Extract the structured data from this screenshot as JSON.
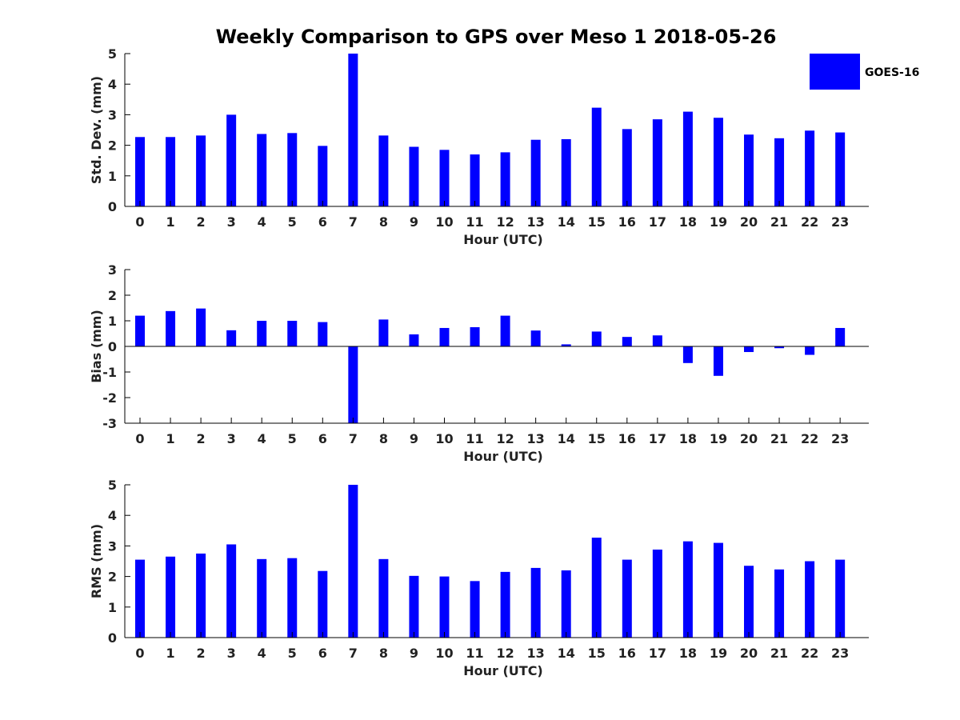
{
  "colors": {
    "bar": "#0000ff",
    "axis": "#000000",
    "text": "#222222"
  },
  "legend": {
    "label": "GOES-16",
    "placement": "top-right"
  },
  "chart_data": {
    "title": "Weekly Comparison to GPS over Meso 1 2018-05-26",
    "type": "bar",
    "categories": [
      "0",
      "1",
      "2",
      "3",
      "4",
      "5",
      "6",
      "7",
      "8",
      "9",
      "10",
      "11",
      "12",
      "13",
      "14",
      "15",
      "16",
      "17",
      "18",
      "19",
      "20",
      "21",
      "22",
      "23"
    ],
    "xlabel": "Hour (UTC)",
    "panels": [
      {
        "ylabel": "Std. Dev. (mm)",
        "ylim": [
          0,
          5
        ],
        "yticks": [
          "0",
          "1",
          "2",
          "3",
          "4",
          "5"
        ],
        "series": [
          {
            "name": "GOES-16",
            "values": [
              2.27,
              2.27,
              2.32,
              3.0,
              2.37,
              2.4,
              1.98,
              5.0,
              2.32,
              1.95,
              1.85,
              1.7,
              1.77,
              2.18,
              2.2,
              3.23,
              2.53,
              2.85,
              3.1,
              2.9,
              2.35,
              2.23,
              2.48,
              2.42
            ]
          }
        ]
      },
      {
        "ylabel": "Bias (mm)",
        "ylim": [
          -3,
          3
        ],
        "yticks": [
          "-3",
          "-2",
          "-1",
          "0",
          "1",
          "2",
          "3"
        ],
        "series": [
          {
            "name": "GOES-16",
            "values": [
              1.2,
              1.38,
              1.48,
              0.63,
              1.0,
              1.0,
              0.95,
              -3.0,
              1.05,
              0.47,
              0.72,
              0.75,
              1.2,
              0.62,
              0.08,
              0.58,
              0.37,
              0.43,
              -0.65,
              -1.15,
              -0.22,
              -0.07,
              -0.33,
              0.72
            ]
          }
        ]
      },
      {
        "ylabel": "RMS (mm)",
        "ylim": [
          0,
          5
        ],
        "yticks": [
          "0",
          "1",
          "2",
          "3",
          "4",
          "5"
        ],
        "series": [
          {
            "name": "GOES-16",
            "values": [
              2.55,
              2.65,
              2.75,
              3.05,
              2.57,
              2.6,
              2.18,
              5.0,
              2.57,
              2.02,
              2.0,
              1.85,
              2.15,
              2.28,
              2.2,
              3.27,
              2.55,
              2.88,
              3.15,
              3.1,
              2.35,
              2.23,
              2.5,
              2.55
            ]
          }
        ]
      }
    ]
  }
}
